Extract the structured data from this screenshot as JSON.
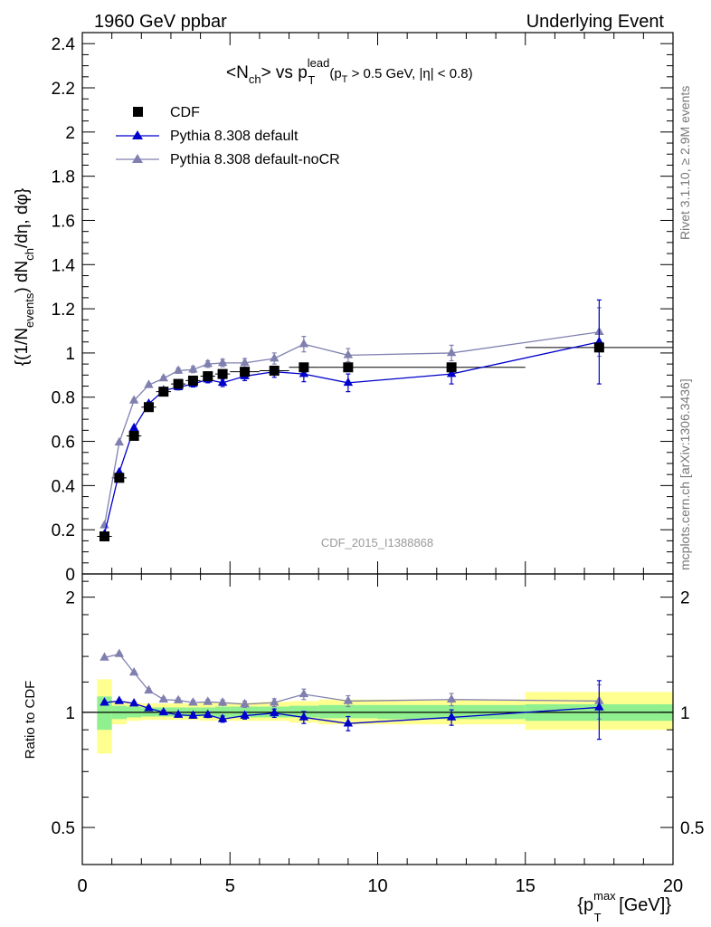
{
  "header": {
    "left": "1960 GeV ppbar",
    "right": "Underlying Event"
  },
  "side_labels": {
    "rivet": "Rivet 3.1.10, ≥ 2.9M events",
    "mcplots": "mcplots.cern.ch [arXiv:1306.3436]"
  },
  "chart_data": [
    {
      "type": "scatter",
      "title": "<N_ch> vs p_T^lead (p_T > 0.5 GeV, |η| < 0.8)",
      "title_parts": {
        "main": "<N",
        "main_sub": "ch",
        "mid": "> vs p",
        "lead_sup": "lead",
        "lead_sub": "T",
        "cut_open": "(p",
        "cut_sub": "T",
        "cut_rest": " > 0.5 GeV, |η| < 0.8)"
      },
      "watermark": "CDF_2015_I1388868",
      "ylabel": "{(1/N_events) dN_ch/dη, dφ}",
      "ylabel_parts": {
        "a": "{(1/N",
        "a_sub": "events",
        "b": ") dN",
        "b_sub": "ch",
        "c": "/dη, dφ}"
      },
      "xlim": [
        0,
        20
      ],
      "ylim": [
        0,
        2.45
      ],
      "y_ticks": [
        0,
        0.2,
        0.4,
        0.6,
        0.8,
        1,
        1.2,
        1.4,
        1.6,
        1.8,
        2,
        2.2,
        2.4
      ],
      "y_tick_labels": [
        "0",
        "0.2",
        "0.4",
        "0.6",
        "0.8",
        "1",
        "1.2",
        "1.4",
        "1.6",
        "1.8",
        "2",
        "2.2",
        "2.4"
      ],
      "legend_position": "top-left",
      "series": [
        {
          "name": "CDF",
          "marker": "square",
          "color": "#000000",
          "x": [
            0.75,
            1.25,
            1.75,
            2.25,
            2.75,
            3.25,
            3.75,
            4.25,
            4.75,
            5.5,
            6.5,
            7.5,
            9.0,
            12.5,
            17.5
          ],
          "xerr": [
            0.25,
            0.25,
            0.25,
            0.25,
            0.25,
            0.25,
            0.25,
            0.25,
            0.25,
            0.5,
            0.5,
            0.5,
            1.0,
            2.5,
            2.5
          ],
          "y": [
            0.17,
            0.435,
            0.625,
            0.755,
            0.825,
            0.86,
            0.875,
            0.895,
            0.905,
            0.915,
            0.92,
            0.935,
            0.935,
            0.935,
            1.025
          ],
          "yerr": [
            0.01,
            0.01,
            0.01,
            0.01,
            0.01,
            0.01,
            0.01,
            0.01,
            0.01,
            0.01,
            0.01,
            0.01,
            0.01,
            0.01,
            0.01
          ]
        },
        {
          "name": "Pythia 8.308 default",
          "marker": "triangle",
          "color": "#0000cc",
          "x": [
            0.75,
            1.25,
            1.75,
            2.25,
            2.75,
            3.25,
            3.75,
            4.25,
            4.75,
            5.5,
            6.5,
            7.5,
            9.0,
            12.5,
            17.5
          ],
          "y": [
            0.18,
            0.46,
            0.66,
            0.77,
            0.83,
            0.845,
            0.86,
            0.88,
            0.865,
            0.895,
            0.915,
            0.905,
            0.865,
            0.905,
            1.05
          ],
          "yerr": [
            0.005,
            0.005,
            0.006,
            0.008,
            0.01,
            0.012,
            0.014,
            0.015,
            0.017,
            0.02,
            0.025,
            0.035,
            0.04,
            0.045,
            0.19
          ]
        },
        {
          "name": "Pythia 8.308 default-noCR",
          "marker": "triangle",
          "color": "#8080b0",
          "x": [
            0.75,
            1.25,
            1.75,
            2.25,
            2.75,
            3.25,
            3.75,
            4.25,
            4.75,
            5.5,
            6.5,
            7.5,
            9.0,
            12.5,
            17.5
          ],
          "y": [
            0.22,
            0.595,
            0.785,
            0.855,
            0.885,
            0.92,
            0.925,
            0.95,
            0.955,
            0.955,
            0.975,
            1.04,
            0.99,
            1.0,
            1.095
          ],
          "yerr": [
            0.005,
            0.006,
            0.007,
            0.008,
            0.01,
            0.012,
            0.014,
            0.015,
            0.017,
            0.02,
            0.025,
            0.035,
            0.03,
            0.035,
            0.11
          ]
        }
      ]
    },
    {
      "type": "scatter",
      "ylabel": "Ratio to CDF",
      "xlabel": "{p_T^max [GeV]}",
      "xlabel_parts": {
        "a": "{p",
        "a_sup": "max",
        "a_sub": "T",
        "b": " [GeV]}"
      },
      "xlim": [
        0,
        20
      ],
      "ylim": [
        0.4,
        2.3
      ],
      "y_scale": "log",
      "x_ticks": [
        0,
        5,
        10,
        15,
        20
      ],
      "x_tick_labels": [
        "0",
        "5",
        "10",
        "15",
        "20"
      ],
      "y_ticks": [
        0.5,
        1,
        2
      ],
      "y_tick_labels": [
        "0.5",
        "1",
        "2"
      ],
      "bands": {
        "x_low": [
          0.5,
          1.0,
          1.5,
          2.0,
          2.5,
          3.0,
          3.5,
          4.0,
          4.5,
          5.0,
          6.0,
          7.0,
          8.0,
          10.0,
          15.0
        ],
        "x_high": [
          1.0,
          1.5,
          2.0,
          2.5,
          3.0,
          3.5,
          4.0,
          4.5,
          5.0,
          6.0,
          7.0,
          8.0,
          10.0,
          15.0,
          20.0
        ],
        "stat_low": [
          0.9,
          0.96,
          0.97,
          0.975,
          0.975,
          0.975,
          0.975,
          0.975,
          0.97,
          0.97,
          0.97,
          0.97,
          0.965,
          0.96,
          0.95
        ],
        "stat_high": [
          1.1,
          1.04,
          1.035,
          1.03,
          1.03,
          1.03,
          1.03,
          1.03,
          1.035,
          1.035,
          1.035,
          1.04,
          1.045,
          1.045,
          1.05
        ],
        "total_low": [
          0.78,
          0.93,
          0.95,
          0.955,
          0.955,
          0.955,
          0.955,
          0.95,
          0.95,
          0.95,
          0.95,
          0.94,
          0.93,
          0.93,
          0.9
        ],
        "total_high": [
          1.22,
          1.07,
          1.06,
          1.055,
          1.055,
          1.055,
          1.055,
          1.06,
          1.06,
          1.06,
          1.065,
          1.07,
          1.08,
          1.08,
          1.13
        ],
        "stat_color": "#90f090",
        "total_color": "#ffff90"
      },
      "series": [
        {
          "name": "Pythia 8.308 default",
          "color": "#0000cc",
          "x": [
            0.75,
            1.25,
            1.75,
            2.25,
            2.75,
            3.25,
            3.75,
            4.25,
            4.75,
            5.5,
            6.5,
            7.5,
            9.0,
            12.5,
            17.5
          ],
          "y": [
            1.06,
            1.07,
            1.055,
            1.025,
            1.0,
            0.985,
            0.98,
            0.985,
            0.96,
            0.98,
            0.995,
            0.97,
            0.935,
            0.97,
            1.03
          ],
          "yerr": [
            0.01,
            0.01,
            0.01,
            0.012,
            0.012,
            0.014,
            0.015,
            0.016,
            0.018,
            0.02,
            0.025,
            0.035,
            0.04,
            0.045,
            0.18
          ]
        },
        {
          "name": "Pythia 8.308 default-noCR",
          "color": "#8080b0",
          "x": [
            0.75,
            1.25,
            1.75,
            2.25,
            2.75,
            3.25,
            3.75,
            4.25,
            4.75,
            5.5,
            6.5,
            7.5,
            9.0,
            12.5,
            17.5
          ],
          "y": [
            1.39,
            1.42,
            1.27,
            1.14,
            1.08,
            1.075,
            1.06,
            1.065,
            1.06,
            1.05,
            1.06,
            1.115,
            1.07,
            1.08,
            1.07
          ],
          "yerr": [
            0.01,
            0.012,
            0.012,
            0.012,
            0.014,
            0.014,
            0.015,
            0.016,
            0.018,
            0.02,
            0.025,
            0.035,
            0.035,
            0.04,
            0.11
          ]
        }
      ]
    }
  ]
}
